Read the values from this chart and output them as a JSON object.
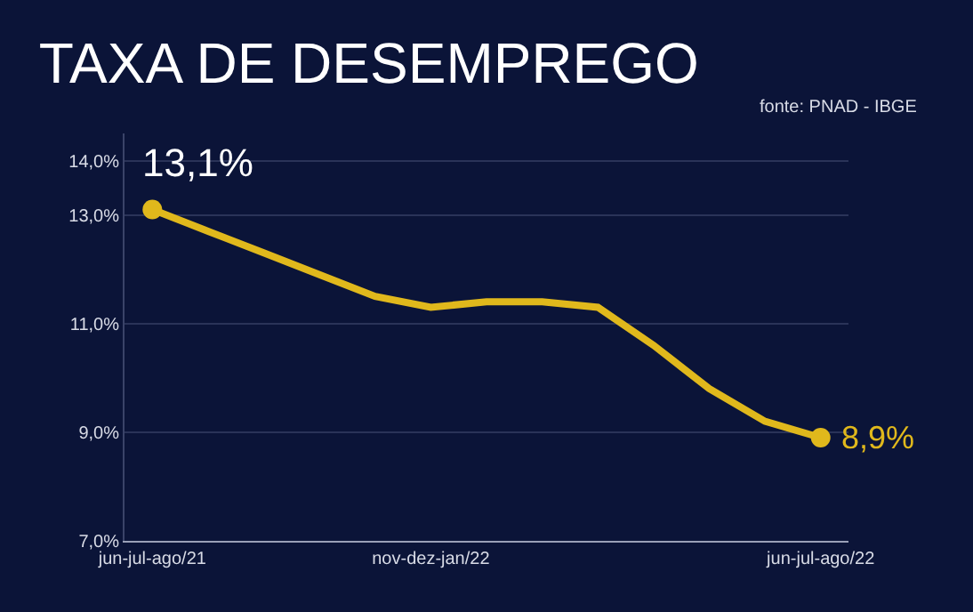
{
  "chart_data": {
    "type": "line",
    "title": "TAXA DE DESEMPREGO",
    "annotations": [
      "fonte: PNAD - IBGE"
    ],
    "categories": [
      "jun-jul-ago/21",
      null,
      null,
      null,
      null,
      "nov-dez-jan/22",
      null,
      null,
      null,
      null,
      null,
      null,
      "jun-jul-ago/22"
    ],
    "series": [
      {
        "color": "#e0b81c",
        "values": [
          13.1,
          12.7,
          12.3,
          11.9,
          11.5,
          11.3,
          11.4,
          11.4,
          11.3,
          10.6,
          9.8,
          9.2,
          8.9
        ],
        "value_labels": [
          "13,1%",
          null,
          null,
          null,
          null,
          null,
          null,
          null,
          null,
          null,
          null,
          null,
          "8,9%"
        ]
      }
    ],
    "ylim": [
      7,
      14.5
    ],
    "yticks": [
      {
        "value": 7,
        "label": "7,0%"
      },
      {
        "value": 9,
        "label": "9,0%"
      },
      {
        "value": 11,
        "label": "11,0%"
      },
      {
        "value": 13,
        "label": "13,0%"
      },
      {
        "value": 14,
        "label": "14,0%"
      }
    ],
    "grid": "y",
    "line_style": "solid"
  }
}
